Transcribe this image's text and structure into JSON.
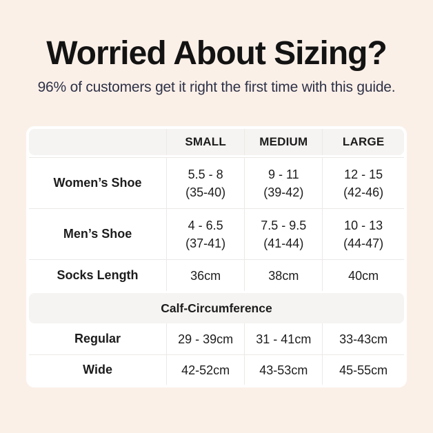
{
  "page": {
    "title": "Worried About Sizing?",
    "subtitle": "96% of customers get it right the first time with this guide."
  },
  "colors": {
    "page_background": "#FBF0E8",
    "card_background": "#FFFFFF",
    "band_background": "#F5F4F2",
    "divider": "#ECE9E6",
    "title_text": "#131313",
    "subtitle_text": "#2E3147",
    "table_text": "#1C1C1C"
  },
  "table": {
    "header": {
      "size_col": "",
      "small": "SMALL",
      "medium": "MEDIUM",
      "large": "LARGE"
    },
    "womens": {
      "label": "Women’s Shoe",
      "small": "5.5 - 8",
      "small_eu": "(35-40)",
      "medium": "9 - 11",
      "medium_eu": "(39-42)",
      "large": "12 - 15",
      "large_eu": "(42-46)"
    },
    "mens": {
      "label": "Men’s Shoe",
      "small": "4 - 6.5",
      "small_eu": "(37-41)",
      "medium": "7.5 - 9.5",
      "medium_eu": "(41-44)",
      "large": "10 - 13",
      "large_eu": "(44-47)"
    },
    "socks": {
      "label": "Socks Length",
      "small": "36cm",
      "medium": "38cm",
      "large": "40cm"
    },
    "calf_header": "Calf-Circumference",
    "regular": {
      "label": "Regular",
      "small": "29 - 39cm",
      "medium": "31 - 41cm",
      "large": "33-43cm"
    },
    "wide": {
      "label": "Wide",
      "small": "42-52cm",
      "medium": "43-53cm",
      "large": "45-55cm"
    }
  },
  "chart_data": {
    "type": "table",
    "title": "Worried About Sizing?",
    "subtitle": "96% of customers get it right the first time with this guide.",
    "columns": [
      "",
      "SMALL",
      "MEDIUM",
      "LARGE"
    ],
    "rows": [
      [
        "Women’s Shoe",
        "5.5 - 8 (35-40)",
        "9 - 11 (39-42)",
        "12 - 15 (42-46)"
      ],
      [
        "Men’s Shoe",
        "4 - 6.5 (37-41)",
        "7.5 - 9.5 (41-44)",
        "10 - 13 (44-47)"
      ],
      [
        "Socks Length",
        "36cm",
        "38cm",
        "40cm"
      ],
      [
        "Calf-Circumference",
        "",
        "",
        ""
      ],
      [
        "Regular",
        "29 - 39cm",
        "31 - 41cm",
        "33-43cm"
      ],
      [
        "Wide",
        "42-52cm",
        "43-53cm",
        "45-55cm"
      ]
    ]
  }
}
